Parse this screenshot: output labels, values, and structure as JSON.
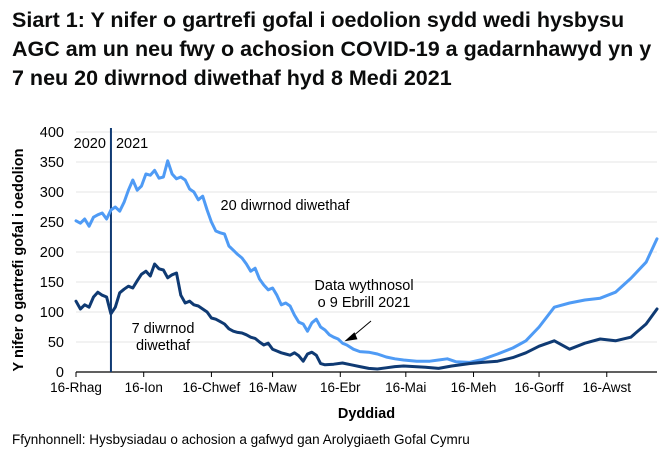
{
  "chart_data": {
    "type": "line",
    "title": "Siart 1: Y nifer o gartrefi gofal i oedolion sydd wedi hysbysu AGC am un neu fwy o achosion COVID-19 a gadarnhawyd yn y 7 neu 20 diwrnod diwethaf hyd 8 Medi 2021",
    "xlabel": "Dyddiad",
    "ylabel": "Y nifer o gartrefi gofal i oedolion",
    "ylim": [
      0,
      400
    ],
    "yticks": [
      0,
      50,
      100,
      150,
      200,
      250,
      300,
      350,
      400
    ],
    "grid": true,
    "legend": "inline labels",
    "x_ticks": [
      {
        "label": "16-Rhag",
        "day": 0
      },
      {
        "label": "16-Ion",
        "day": 31
      },
      {
        "label": "16-Chwef",
        "day": 62
      },
      {
        "label": "16-Maw",
        "day": 90
      },
      {
        "label": "16-Ebr",
        "day": 121
      },
      {
        "label": "16-Mai",
        "day": 151
      },
      {
        "label": "16-Meh",
        "day": 182
      },
      {
        "label": "16-Gorff",
        "day": 212
      },
      {
        "label": "16-Awst",
        "day": 243
      }
    ],
    "x_range_days": [
      0,
      266
    ],
    "year_divider": {
      "day": 16,
      "labels": [
        "2020",
        "2021"
      ]
    },
    "series": [
      {
        "name": "20 diwrnod diwethaf",
        "color": "#4f9bf5",
        "points": [
          [
            0,
            252
          ],
          [
            2,
            248
          ],
          [
            4,
            255
          ],
          [
            6,
            243
          ],
          [
            8,
            258
          ],
          [
            10,
            262
          ],
          [
            12,
            265
          ],
          [
            14,
            255
          ],
          [
            16,
            270
          ],
          [
            18,
            275
          ],
          [
            20,
            268
          ],
          [
            22,
            283
          ],
          [
            24,
            303
          ],
          [
            26,
            320
          ],
          [
            28,
            303
          ],
          [
            30,
            310
          ],
          [
            32,
            330
          ],
          [
            34,
            328
          ],
          [
            36,
            336
          ],
          [
            38,
            323
          ],
          [
            40,
            325
          ],
          [
            42,
            352
          ],
          [
            44,
            330
          ],
          [
            46,
            322
          ],
          [
            48,
            325
          ],
          [
            50,
            320
          ],
          [
            52,
            305
          ],
          [
            54,
            300
          ],
          [
            56,
            287
          ],
          [
            58,
            293
          ],
          [
            60,
            270
          ],
          [
            62,
            250
          ],
          [
            64,
            235
          ],
          [
            66,
            232
          ],
          [
            68,
            230
          ],
          [
            70,
            210
          ],
          [
            72,
            203
          ],
          [
            74,
            196
          ],
          [
            76,
            190
          ],
          [
            78,
            180
          ],
          [
            80,
            168
          ],
          [
            82,
            173
          ],
          [
            84,
            155
          ],
          [
            86,
            145
          ],
          [
            88,
            137
          ],
          [
            90,
            140
          ],
          [
            92,
            128
          ],
          [
            94,
            112
          ],
          [
            96,
            115
          ],
          [
            98,
            110
          ],
          [
            100,
            95
          ],
          [
            102,
            83
          ],
          [
            104,
            80
          ],
          [
            106,
            68
          ],
          [
            108,
            82
          ],
          [
            110,
            88
          ],
          [
            112,
            75
          ],
          [
            114,
            70
          ],
          [
            116,
            62
          ],
          [
            118,
            58
          ],
          [
            120,
            55
          ],
          [
            122,
            48
          ],
          [
            124,
            45
          ],
          [
            127,
            38
          ],
          [
            130,
            34
          ],
          [
            134,
            33
          ],
          [
            138,
            30
          ],
          [
            142,
            25
          ],
          [
            146,
            22
          ],
          [
            150,
            20
          ],
          [
            156,
            18
          ],
          [
            162,
            18
          ],
          [
            166,
            20
          ],
          [
            170,
            22
          ],
          [
            174,
            17
          ],
          [
            180,
            16
          ],
          [
            186,
            21
          ],
          [
            193,
            30
          ],
          [
            200,
            40
          ],
          [
            206,
            52
          ],
          [
            212,
            75
          ],
          [
            219,
            108
          ],
          [
            226,
            115
          ],
          [
            233,
            120
          ],
          [
            240,
            123
          ],
          [
            247,
            133
          ],
          [
            254,
            156
          ],
          [
            261,
            183
          ],
          [
            266,
            222
          ]
        ]
      },
      {
        "name": "7 diwrnod diwethaf",
        "color": "#0f3a73",
        "points": [
          [
            0,
            118
          ],
          [
            2,
            105
          ],
          [
            4,
            112
          ],
          [
            6,
            108
          ],
          [
            8,
            125
          ],
          [
            10,
            133
          ],
          [
            12,
            128
          ],
          [
            14,
            125
          ],
          [
            16,
            97
          ],
          [
            18,
            108
          ],
          [
            20,
            132
          ],
          [
            22,
            138
          ],
          [
            24,
            143
          ],
          [
            26,
            140
          ],
          [
            28,
            152
          ],
          [
            30,
            163
          ],
          [
            32,
            168
          ],
          [
            34,
            160
          ],
          [
            36,
            180
          ],
          [
            38,
            172
          ],
          [
            40,
            170
          ],
          [
            42,
            157
          ],
          [
            44,
            162
          ],
          [
            46,
            165
          ],
          [
            48,
            128
          ],
          [
            50,
            115
          ],
          [
            52,
            118
          ],
          [
            54,
            112
          ],
          [
            56,
            110
          ],
          [
            58,
            105
          ],
          [
            60,
            100
          ],
          [
            62,
            90
          ],
          [
            64,
            88
          ],
          [
            66,
            84
          ],
          [
            68,
            80
          ],
          [
            70,
            72
          ],
          [
            72,
            68
          ],
          [
            74,
            66
          ],
          [
            76,
            65
          ],
          [
            78,
            62
          ],
          [
            80,
            58
          ],
          [
            82,
            56
          ],
          [
            84,
            50
          ],
          [
            86,
            45
          ],
          [
            88,
            48
          ],
          [
            90,
            38
          ],
          [
            92,
            35
          ],
          [
            94,
            32
          ],
          [
            96,
            30
          ],
          [
            98,
            28
          ],
          [
            100,
            32
          ],
          [
            102,
            27
          ],
          [
            104,
            18
          ],
          [
            106,
            30
          ],
          [
            108,
            33
          ],
          [
            110,
            28
          ],
          [
            112,
            14
          ],
          [
            114,
            12
          ],
          [
            118,
            13
          ],
          [
            122,
            15
          ],
          [
            126,
            12
          ],
          [
            130,
            9
          ],
          [
            134,
            6
          ],
          [
            138,
            5
          ],
          [
            142,
            7
          ],
          [
            146,
            9
          ],
          [
            150,
            10
          ],
          [
            155,
            9
          ],
          [
            160,
            8
          ],
          [
            166,
            6
          ],
          [
            172,
            10
          ],
          [
            180,
            14
          ],
          [
            186,
            16
          ],
          [
            193,
            18
          ],
          [
            200,
            24
          ],
          [
            206,
            32
          ],
          [
            212,
            43
          ],
          [
            219,
            52
          ],
          [
            226,
            38
          ],
          [
            233,
            48
          ],
          [
            240,
            55
          ],
          [
            247,
            52
          ],
          [
            254,
            58
          ],
          [
            261,
            80
          ],
          [
            266,
            105
          ]
        ]
      }
    ],
    "annotations": [
      {
        "text": [
          "20 diwrnod diwethaf"
        ],
        "x": 285,
        "y": 210
      },
      {
        "text": [
          "7 diwrnod",
          "diwethaf"
        ],
        "x": 163,
        "y": 333
      },
      {
        "text": [
          "Data wythnosol",
          "o 9 Ebrill 2021"
        ],
        "x": 364,
        "y": 290,
        "arrow_to_day": 121
      }
    ]
  },
  "footer": {
    "source": "Ffynhonnell: Hysbysiadau o achosion a gafwyd gan Arolygiaeth Gofal Cymru"
  }
}
